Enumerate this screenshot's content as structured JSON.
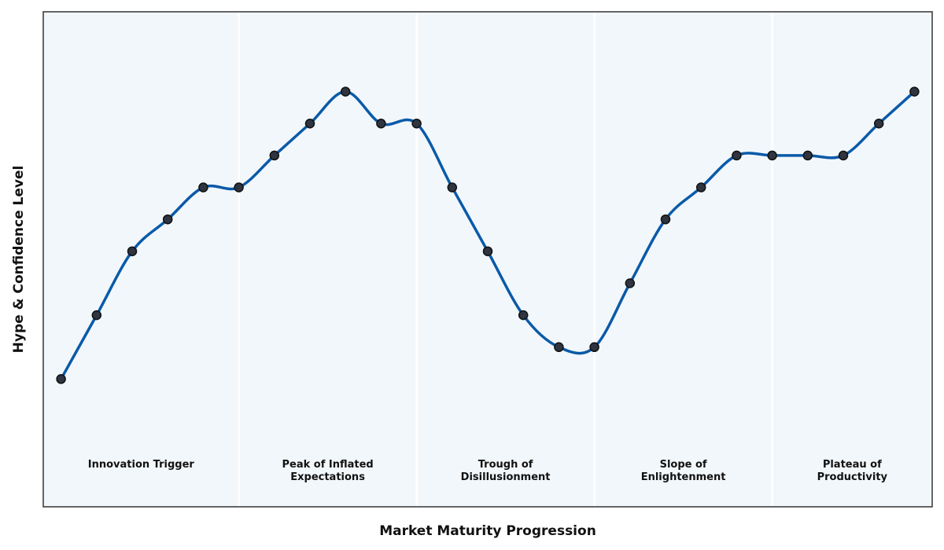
{
  "chart_data": {
    "type": "line",
    "title": "",
    "xlabel": "Market Maturity Progression",
    "ylabel": "Hype & Confidence Level",
    "x_ticks_visible": false,
    "y_ticks_visible": false,
    "grid": false,
    "legend": "none",
    "xlim": [
      -0.5,
      24.5
    ],
    "ylim": [
      0,
      15.5
    ],
    "colors": {
      "line": "#0a5aa8",
      "marker_fill": "#2e3440",
      "marker_edge": "#111111",
      "background": "#f2f7fb",
      "frame": "#333333"
    },
    "series": [
      {
        "x": [
          0,
          1,
          2,
          3,
          4,
          5,
          6,
          7,
          8,
          9,
          10,
          11,
          12,
          13,
          14,
          15,
          16,
          17,
          18,
          19,
          20,
          21,
          22,
          23,
          24
        ],
        "y": [
          4,
          6,
          8,
          9,
          10,
          10,
          11,
          12,
          13,
          12,
          12,
          10,
          8,
          6,
          5,
          5,
          7,
          9,
          10,
          11,
          11,
          11,
          11,
          12,
          13
        ]
      }
    ],
    "phases": [
      {
        "label_lines": [
          "Innovation Trigger"
        ],
        "x_start": -0.5,
        "x_end": 5
      },
      {
        "label_lines": [
          "Peak of Inflated",
          "Expectations"
        ],
        "x_start": 5,
        "x_end": 10
      },
      {
        "label_lines": [
          "Trough of",
          "Disillusionment"
        ],
        "x_start": 10,
        "x_end": 15
      },
      {
        "label_lines": [
          "Slope of",
          "Enlightenment"
        ],
        "x_start": 15,
        "x_end": 20
      },
      {
        "label_lines": [
          "Plateau of",
          "Productivity"
        ],
        "x_start": 20,
        "x_end": 24.5
      }
    ]
  }
}
